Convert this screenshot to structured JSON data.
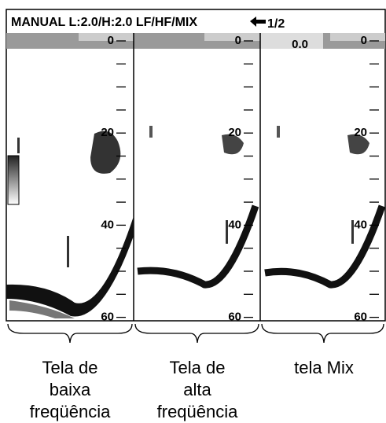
{
  "header": {
    "mode": "MANUAL L:2.0/H:2.0 LF/HF/MIX",
    "page": "1/2"
  },
  "range_start": "0.0",
  "panels": [
    {
      "scale": [
        "0",
        "20",
        "40",
        "60"
      ],
      "caption": [
        "Tela de",
        "baixa",
        "freqüência"
      ]
    },
    {
      "scale": [
        "0",
        "20",
        "40",
        "60"
      ],
      "caption": [
        "Tela de",
        "alta",
        "freqüência"
      ]
    },
    {
      "scale": [
        "0",
        "20",
        "40",
        "60"
      ],
      "caption": [
        "tela Mix"
      ]
    }
  ]
}
